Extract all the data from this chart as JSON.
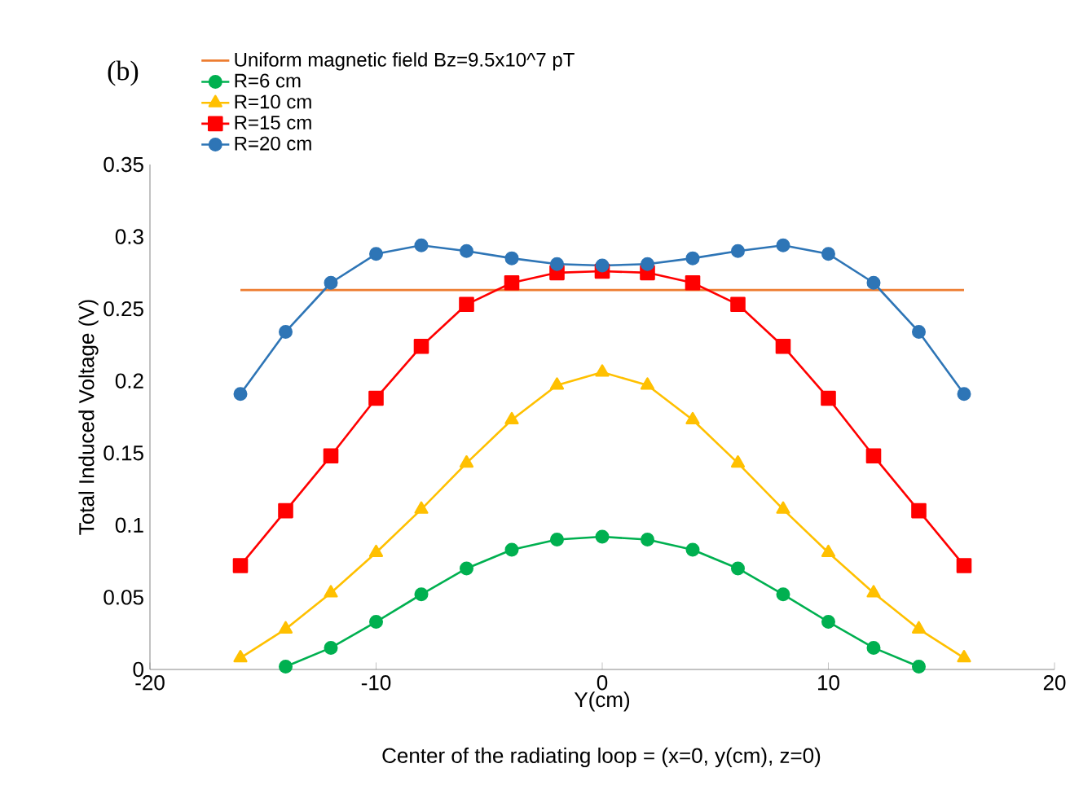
{
  "chart_data": {
    "type": "line",
    "xlabel": "Y(cm)",
    "ylabel": "Total Induced Voltage (V)",
    "annotations": [
      "(b)",
      "Center of the radiating loop = (x=0, y(cm), z=0)"
    ],
    "xlim": [
      -20,
      20
    ],
    "xticks": [
      -20,
      -10,
      0,
      10,
      20
    ],
    "ylim": [
      0,
      0.35
    ],
    "yticks": [
      0,
      0.05,
      0.1,
      0.15,
      0.2,
      0.25,
      0.3,
      0.35
    ],
    "grid": false,
    "legend": "top left",
    "series": [
      {
        "name": "Uniform magnetic field Bz=9.5x10^7 pT",
        "color": "#ed7d31",
        "marker": "none",
        "x": [
          -16,
          16
        ],
        "values": [
          0.263,
          0.263
        ]
      },
      {
        "name": "R=6 cm",
        "color": "#00b050",
        "marker": "circle",
        "x": [
          -14,
          -12,
          -10,
          -8,
          -6,
          -4,
          -2,
          0,
          2,
          4,
          6,
          8,
          10,
          12,
          14
        ],
        "values": [
          0.002,
          0.015,
          0.033,
          0.052,
          0.07,
          0.083,
          0.09,
          0.092,
          0.09,
          0.083,
          0.07,
          0.052,
          0.033,
          0.015,
          0.002
        ]
      },
      {
        "name": "R=10 cm",
        "color": "#ffc000",
        "marker": "triangle",
        "x": [
          -16,
          -14,
          -12,
          -10,
          -8,
          -6,
          -4,
          -2,
          0,
          2,
          4,
          6,
          8,
          10,
          12,
          14,
          16
        ],
        "values": [
          0.008,
          0.028,
          0.053,
          0.081,
          0.111,
          0.143,
          0.173,
          0.197,
          0.206,
          0.197,
          0.173,
          0.143,
          0.111,
          0.081,
          0.053,
          0.028,
          0.008
        ]
      },
      {
        "name": "R=15 cm",
        "color": "#ff0000",
        "marker": "square",
        "x": [
          -16,
          -14,
          -12,
          -10,
          -8,
          -6,
          -4,
          -2,
          0,
          2,
          4,
          6,
          8,
          10,
          12,
          14,
          16
        ],
        "values": [
          0.072,
          0.11,
          0.148,
          0.188,
          0.224,
          0.253,
          0.268,
          0.275,
          0.276,
          0.275,
          0.268,
          0.253,
          0.224,
          0.188,
          0.148,
          0.11,
          0.072
        ]
      },
      {
        "name": "R=20 cm",
        "color": "#2e75b6",
        "marker": "circle",
        "x": [
          -16,
          -14,
          -12,
          -10,
          -8,
          -6,
          -4,
          -2,
          0,
          2,
          4,
          6,
          8,
          10,
          12,
          14,
          16
        ],
        "values": [
          0.191,
          0.234,
          0.268,
          0.288,
          0.294,
          0.29,
          0.285,
          0.281,
          0.28,
          0.281,
          0.285,
          0.29,
          0.294,
          0.288,
          0.268,
          0.234,
          0.191
        ]
      }
    ]
  }
}
